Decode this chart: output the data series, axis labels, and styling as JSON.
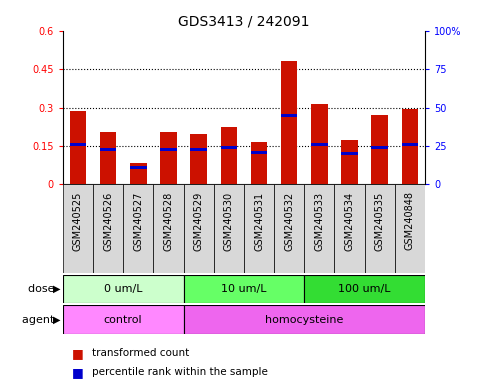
{
  "title": "GDS3413 / 242091",
  "samples": [
    "GSM240525",
    "GSM240526",
    "GSM240527",
    "GSM240528",
    "GSM240529",
    "GSM240530",
    "GSM240531",
    "GSM240532",
    "GSM240533",
    "GSM240534",
    "GSM240535",
    "GSM240848"
  ],
  "red_values": [
    0.285,
    0.205,
    0.085,
    0.205,
    0.195,
    0.225,
    0.165,
    0.48,
    0.315,
    0.175,
    0.27,
    0.295
  ],
  "blue_values": [
    0.155,
    0.135,
    0.065,
    0.135,
    0.135,
    0.145,
    0.125,
    0.27,
    0.155,
    0.12,
    0.145,
    0.155
  ],
  "ylim_left": [
    0,
    0.6
  ],
  "ylim_right": [
    0,
    100
  ],
  "yticks_left": [
    0,
    0.15,
    0.3,
    0.45,
    0.6
  ],
  "ytick_labels_left": [
    "0",
    "0.15",
    "0.3",
    "0.45",
    "0.6"
  ],
  "yticks_right": [
    0,
    25,
    50,
    75,
    100
  ],
  "ytick_labels_right": [
    "0",
    "25",
    "50",
    "75",
    "100%"
  ],
  "hline_values": [
    0.15,
    0.3,
    0.45
  ],
  "dose_groups": [
    {
      "label": "0 um/L",
      "start": 0,
      "end": 4,
      "color": "#ccffcc"
    },
    {
      "label": "10 um/L",
      "start": 4,
      "end": 8,
      "color": "#66ff66"
    },
    {
      "label": "100 um/L",
      "start": 8,
      "end": 12,
      "color": "#33dd33"
    }
  ],
  "agent_groups": [
    {
      "label": "control",
      "start": 0,
      "end": 4,
      "color": "#ff88ff"
    },
    {
      "label": "homocysteine",
      "start": 4,
      "end": 12,
      "color": "#ee66ee"
    }
  ],
  "red_color": "#cc1100",
  "blue_color": "#0000cc",
  "bar_width": 0.55,
  "legend_red": "transformed count",
  "legend_blue": "percentile rank within the sample",
  "dose_label": "dose",
  "agent_label": "agent",
  "title_fontsize": 10,
  "tick_fontsize": 7,
  "label_fontsize": 8,
  "sample_fontsize": 7
}
